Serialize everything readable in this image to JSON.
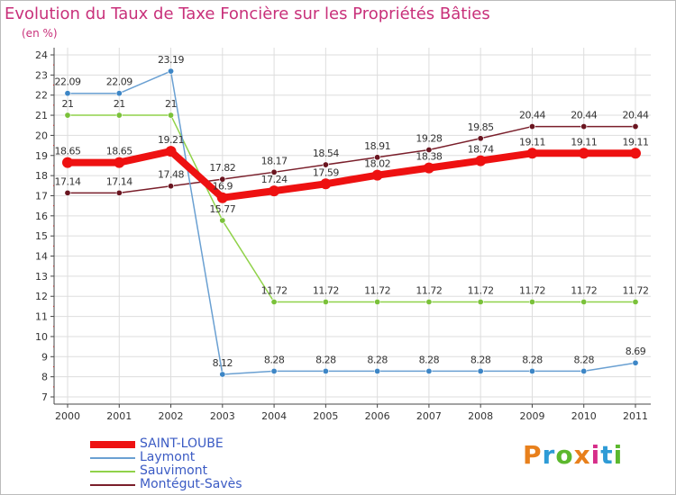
{
  "header": {
    "title": "Evolution du Taux de Taxe Foncière sur les Propriétés Bâties",
    "subtitle": "(en %)"
  },
  "logo": {
    "text": "Proxiti",
    "colors": [
      "#e8801c",
      "#2e9bd6",
      "#5cb82e",
      "#e8801c",
      "#d62e8a",
      "#2e9bd6",
      "#5cb82e"
    ]
  },
  "chart_data": {
    "type": "line",
    "title": "Evolution du Taux de Taxe Foncière sur les Propriétés Bâties",
    "ylabel": "(en %)",
    "xlabel": "",
    "ylim": [
      7,
      24
    ],
    "grid": true,
    "legend_position": "bottom-left",
    "categories": [
      "2000",
      "2001",
      "2002",
      "2003",
      "2004",
      "2005",
      "2006",
      "2007",
      "2008",
      "2009",
      "2010",
      "2011"
    ],
    "yticks": [
      "7",
      "8",
      "9",
      "10",
      "11",
      "12",
      "13",
      "14",
      "15",
      "16",
      "17",
      "18",
      "19",
      "20",
      "21",
      "22",
      "23",
      "24"
    ],
    "series": [
      {
        "name": "Montégut-Savès",
        "color": "#7a1f2b",
        "dot": "#6a1520",
        "values": [
          17.14,
          17.14,
          17.48,
          17.82,
          18.17,
          18.54,
          18.91,
          19.28,
          19.85,
          20.44,
          20.44,
          20.44
        ],
        "labels": [
          "17.14",
          "17.14",
          "17.48",
          "17.82",
          "18.17",
          "18.54",
          "18.91",
          "19.28",
          "19.85",
          "20.44",
          "20.44",
          "20.44"
        ]
      },
      {
        "name": "Sauvimont",
        "color": "#90d24a",
        "dot": "#7ac13a",
        "values": [
          21,
          21,
          21,
          15.77,
          11.72,
          11.72,
          11.72,
          11.72,
          11.72,
          11.72,
          11.72,
          11.72
        ],
        "labels": [
          "21",
          "21",
          "21",
          "15.77",
          "11.72",
          "11.72",
          "11.72",
          "11.72",
          "11.72",
          "11.72",
          "11.72",
          "11.72"
        ]
      },
      {
        "name": "Laymont",
        "color": "#6aa0d2",
        "dot": "#3d86c6",
        "values": [
          22.09,
          22.09,
          23.19,
          8.12,
          8.28,
          8.28,
          8.28,
          8.28,
          8.28,
          8.28,
          8.28,
          8.69
        ],
        "labels": [
          "22.09",
          "22.09",
          "23.19",
          "8.12",
          "8.28",
          "8.28",
          "8.28",
          "8.28",
          "8.28",
          "8.28",
          "8.28",
          "8.69"
        ]
      },
      {
        "name": "SAINT-LOUBE",
        "color": "#ee1111",
        "dot": "#ee1111",
        "values": [
          18.65,
          18.65,
          19.21,
          16.9,
          17.24,
          17.59,
          18.02,
          18.38,
          18.74,
          19.11,
          19.11,
          19.11
        ],
        "labels": [
          "18.65",
          "18.65",
          "19.21",
          "16.9",
          "17.24",
          "17.59",
          "18.02",
          "18.38",
          "18.74",
          "19.11",
          "19.11",
          "19.11"
        ]
      }
    ],
    "legend_order": [
      "SAINT-LOUBE",
      "Laymont",
      "Sauvimont",
      "Montégut-Savès"
    ]
  }
}
